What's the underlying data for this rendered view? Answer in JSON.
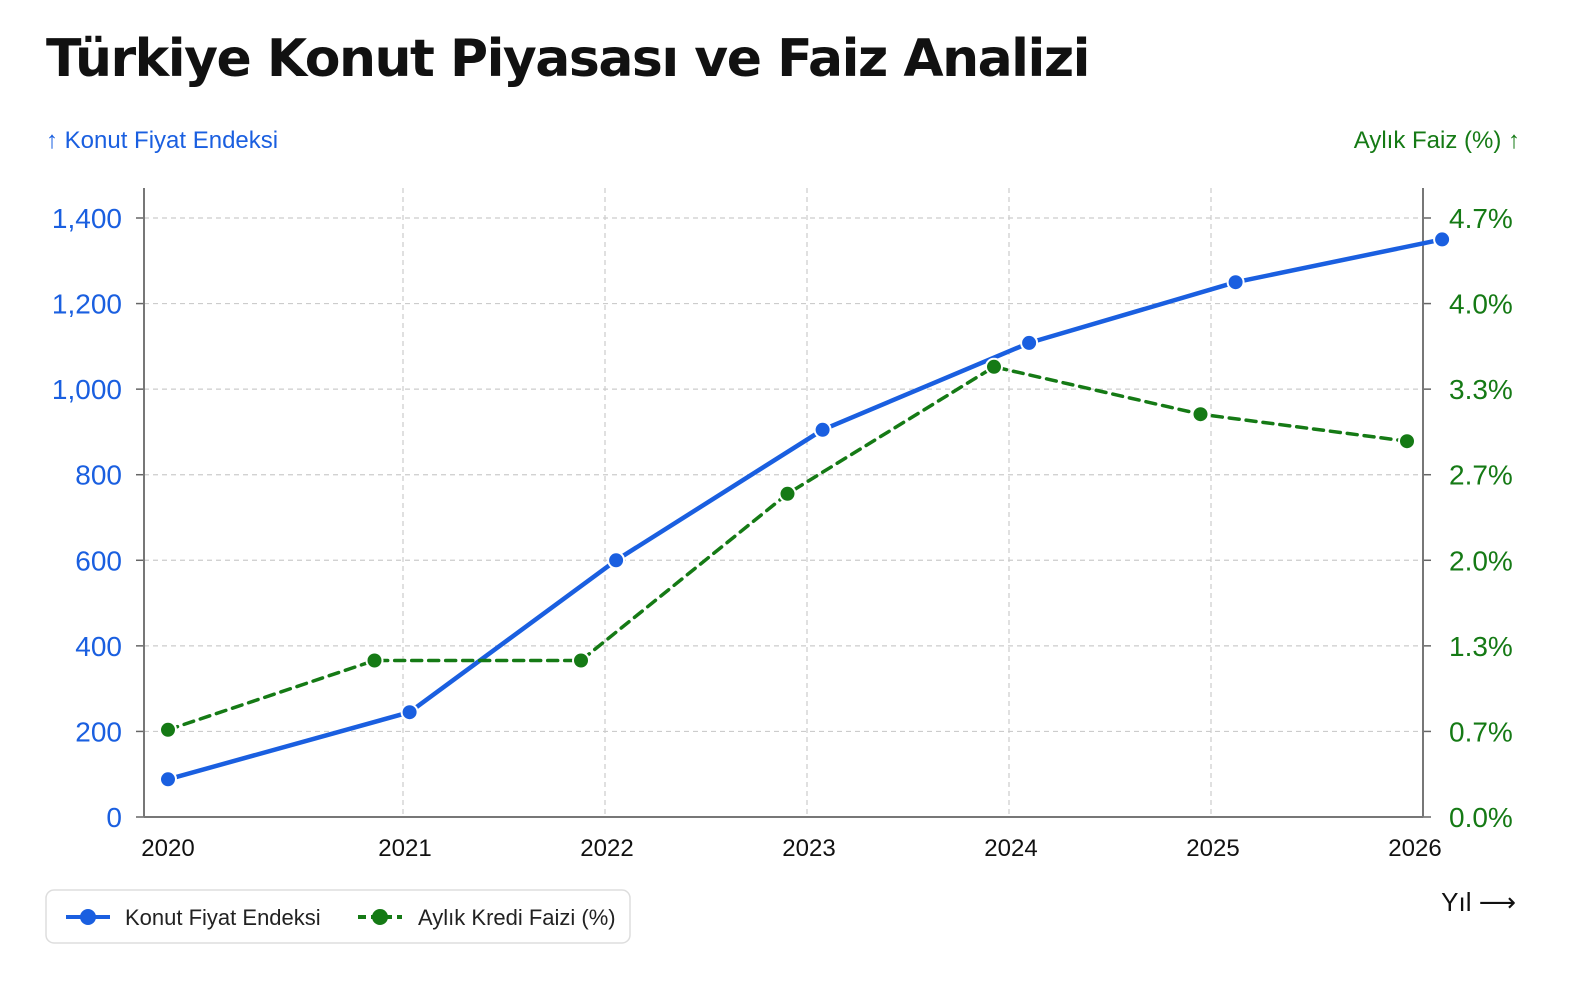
{
  "chart_data": {
    "type": "line",
    "title": "Türkiye Konut Piyasası ve Faiz Analizi",
    "ylabel_left": "↑ Konut Fiyat Endeksi",
    "ylabel_right": "Aylık Faiz (%) ↑",
    "xlabel": "Yıl ⟶",
    "x": [
      2020,
      2021,
      2022,
      2023,
      2024,
      2025,
      2026
    ],
    "x_ticks": [
      "2020",
      "2021",
      "2022",
      "2023",
      "2024",
      "2025",
      "2026"
    ],
    "left_ticks": [
      "0",
      "200",
      "400",
      "600",
      "800",
      "1,000",
      "1,200",
      "1,400"
    ],
    "right_ticks": [
      "0.0%",
      "0.7%",
      "1.3%",
      "2.0%",
      "2.7%",
      "3.3%",
      "4.0%",
      "4.7%"
    ],
    "ylim_left": [
      0,
      1400
    ],
    "ylim_right": [
      0,
      4.67
    ],
    "grid": true,
    "legend_position": "bottom-left",
    "series": [
      {
        "name": "Konut Fiyat Endeksi",
        "axis": "left",
        "color": "#1a5fe0",
        "style": "solid",
        "x": [
          2020,
          2021.17,
          2022.17,
          2023.17,
          2024.17,
          2025.17,
          2026.17
        ],
        "values": [
          88,
          245,
          600,
          905,
          1108,
          1250,
          1350
        ]
      },
      {
        "name": "Aylık Kredi Faizi (%)",
        "axis": "right",
        "color": "#157a15",
        "style": "dashed",
        "x": [
          2020,
          2021,
          2022,
          2023,
          2024,
          2025,
          2026
        ],
        "values": [
          0.68,
          1.22,
          1.22,
          2.52,
          3.51,
          3.14,
          2.93
        ]
      }
    ]
  }
}
